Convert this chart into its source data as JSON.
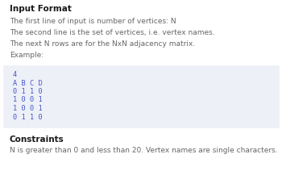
{
  "title": "Input Format",
  "lines": [
    "The first line of input is number of vertices: N",
    "The second line is the set of vertices, i.e. vertex names.",
    "The next N rows are for the NxN adjacency matrix.",
    "Example:"
  ],
  "code_lines": [
    "4",
    "A B C D",
    "0 1 1 0",
    "1 0 0 1",
    "1 0 0 1",
    "0 1 1 0"
  ],
  "constraints_title": "Constraints",
  "constraints_text": "N is greater than 0 and less than 20. Vertex names are single characters.",
  "bg_color": "#ffffff",
  "code_bg_color": "#edf1f7",
  "title_color": "#1a1a1a",
  "body_color": "#666666",
  "code_color": "#4455cc",
  "constraints_title_color": "#1a1a1a",
  "title_fontsize": 7.5,
  "body_fontsize": 6.5,
  "code_fontsize": 6.2
}
